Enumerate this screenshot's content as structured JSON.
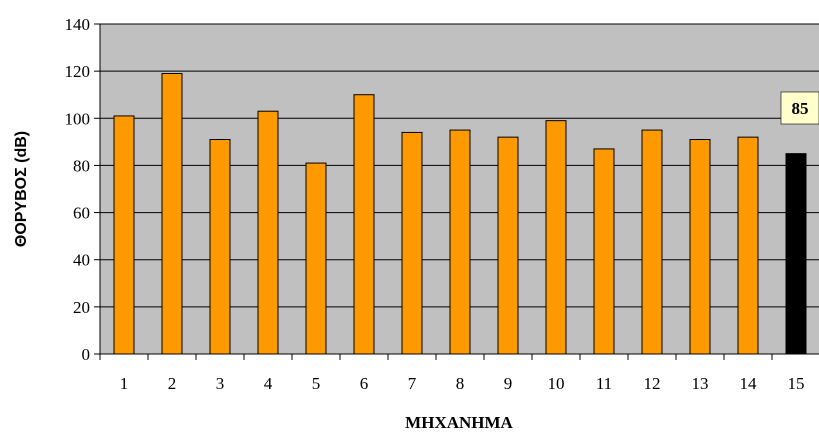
{
  "chart_data": {
    "type": "bar",
    "categories": [
      "1",
      "2",
      "3",
      "4",
      "5",
      "6",
      "7",
      "8",
      "9",
      "10",
      "11",
      "12",
      "13",
      "14",
      "15"
    ],
    "values": [
      101,
      119,
      91,
      103,
      81,
      110,
      94,
      95,
      92,
      99,
      87,
      95,
      91,
      92,
      85
    ],
    "xlabel": "ΜΗΧΑΝΗΜΑ",
    "ylabel": "ΘΟΡΥΒΟΣ (dB)",
    "ylim": [
      0,
      140
    ],
    "yticks": [
      0,
      20,
      40,
      60,
      80,
      100,
      120,
      140
    ],
    "grid": true,
    "legend": "none",
    "bar_color": "#ff9900",
    "highlight_index": 14,
    "highlight_color": "#000000",
    "plot_background": "#c0c0c0",
    "annotation": {
      "text": "85",
      "background": "#ffffcc"
    }
  }
}
